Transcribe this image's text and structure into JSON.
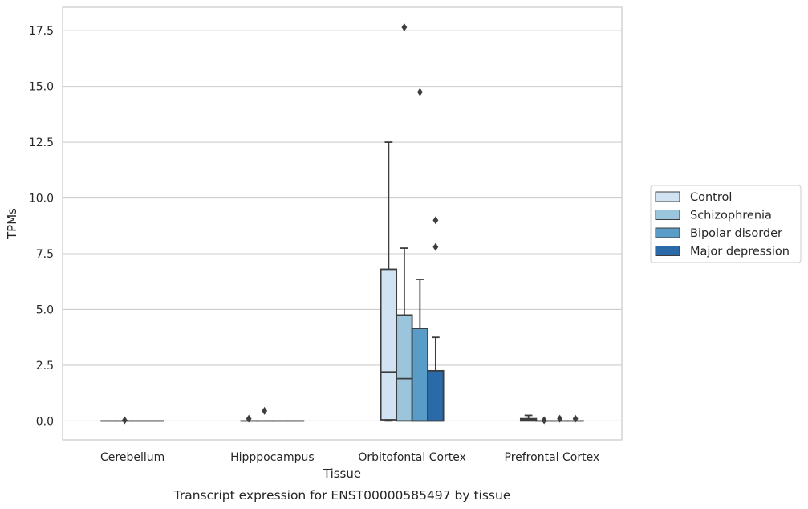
{
  "chart_data": {
    "type": "box",
    "caption": "Transcript expression for ENST00000585497 by tissue",
    "xlabel": "Tissue",
    "ylabel": "TPMs",
    "ylim": [
      -0.85,
      18.55
    ],
    "yticks": [
      "0.0",
      "2.5",
      "5.0",
      "7.5",
      "10.0",
      "12.5",
      "15.0",
      "17.5"
    ],
    "ytick_values": [
      0,
      2.5,
      5,
      7.5,
      10,
      12.5,
      15,
      17.5
    ],
    "grid": true,
    "legend_position": "right",
    "categories": [
      "Cerebellum",
      "Hipppocampus",
      "Orbitofontal Cortex",
      "Prefrontal Cortex"
    ],
    "series": [
      {
        "name": "Control",
        "color": "#d1e2f2",
        "boxes": [
          {
            "q1": 0,
            "median": 0,
            "q3": 0,
            "whislo": 0,
            "whishi": 0,
            "fliers": []
          },
          {
            "q1": 0,
            "median": 0,
            "q3": 0,
            "whislo": 0,
            "whishi": 0,
            "fliers": [
              0.1
            ]
          },
          {
            "q1": 0.05,
            "median": 2.2,
            "q3": 6.8,
            "whislo": 0,
            "whishi": 12.5,
            "fliers": []
          },
          {
            "q1": 0,
            "median": 0.05,
            "q3": 0.1,
            "whislo": 0,
            "whishi": 0.25,
            "fliers": []
          }
        ]
      },
      {
        "name": "Schizophrenia",
        "color": "#9ac5dd",
        "boxes": [
          {
            "q1": 0,
            "median": 0,
            "q3": 0,
            "whislo": 0,
            "whishi": 0,
            "fliers": [
              0.03
            ]
          },
          {
            "q1": 0,
            "median": 0,
            "q3": 0,
            "whislo": 0,
            "whishi": 0,
            "fliers": [
              0.45
            ]
          },
          {
            "q1": 0,
            "median": 1.9,
            "q3": 4.75,
            "whislo": 0,
            "whishi": 7.75,
            "fliers": [
              17.65
            ]
          },
          {
            "q1": 0,
            "median": 0,
            "q3": 0,
            "whislo": 0,
            "whishi": 0,
            "fliers": [
              0.03
            ]
          }
        ]
      },
      {
        "name": "Bipolar disorder",
        "color": "#5a9cc8",
        "boxes": [
          {
            "q1": 0,
            "median": 0,
            "q3": 0,
            "whislo": 0,
            "whishi": 0,
            "fliers": []
          },
          {
            "q1": 0,
            "median": 0,
            "q3": 0,
            "whislo": 0,
            "whishi": 0,
            "fliers": []
          },
          {
            "q1": 0,
            "median": 0,
            "q3": 4.15,
            "whislo": 0,
            "whishi": 6.35,
            "fliers": [
              14.75
            ]
          },
          {
            "q1": 0,
            "median": 0,
            "q3": 0,
            "whislo": 0,
            "whishi": 0,
            "fliers": [
              0.1
            ]
          }
        ]
      },
      {
        "name": "Major depression",
        "color": "#2a6aa9",
        "boxes": [
          {
            "q1": 0,
            "median": 0,
            "q3": 0,
            "whislo": 0,
            "whishi": 0,
            "fliers": []
          },
          {
            "q1": 0,
            "median": 0,
            "q3": 0,
            "whislo": 0,
            "whishi": 0,
            "fliers": []
          },
          {
            "q1": 0,
            "median": 0,
            "q3": 2.25,
            "whislo": 0,
            "whishi": 3.75,
            "fliers": [
              9.0,
              7.8
            ]
          },
          {
            "q1": 0,
            "median": 0,
            "q3": 0,
            "whislo": 0,
            "whishi": 0,
            "fliers": [
              0.1
            ]
          }
        ]
      }
    ]
  }
}
